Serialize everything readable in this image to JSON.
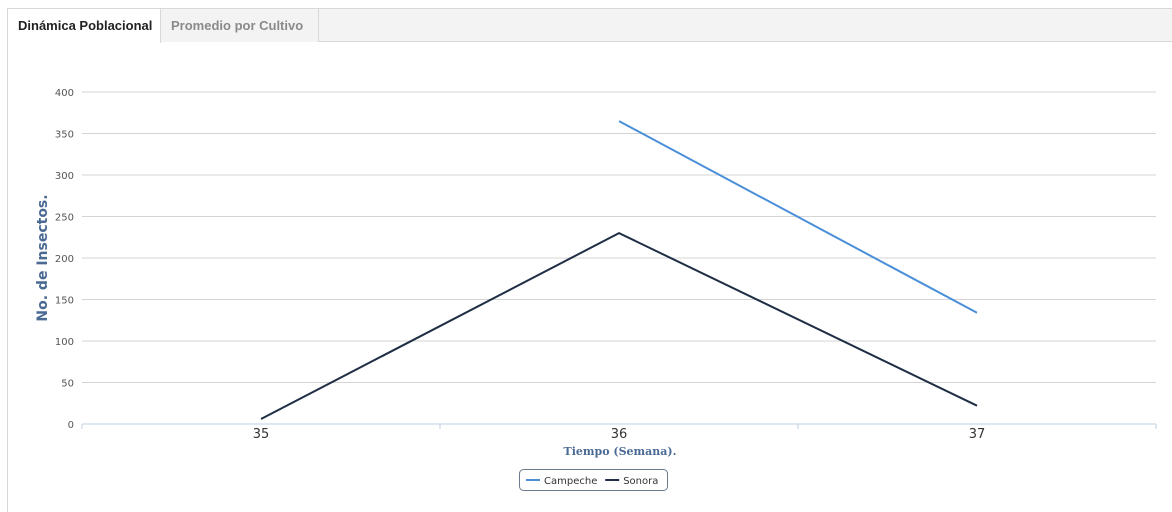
{
  "tabs": [
    {
      "label": "Dinámica Poblacional",
      "active": true
    },
    {
      "label": "Promedio por Cultivo",
      "active": false
    }
  ],
  "chart_data": {
    "type": "line",
    "title": "",
    "xlabel": "Tiempo (Semana).",
    "ylabel": "No. de Insectos.",
    "categories": [
      "35",
      "36",
      "37"
    ],
    "ylim": [
      0,
      400
    ],
    "yticks": [
      0,
      50,
      100,
      150,
      200,
      250,
      300,
      350,
      400
    ],
    "grid": true,
    "legend_position": "bottom-center",
    "series": [
      {
        "name": "Campeche",
        "color": "#4a8fd8",
        "values": [
          null,
          365,
          134
        ]
      },
      {
        "name": "Sonora",
        "color": "#1f2e44",
        "values": [
          6,
          230,
          22
        ]
      }
    ]
  }
}
